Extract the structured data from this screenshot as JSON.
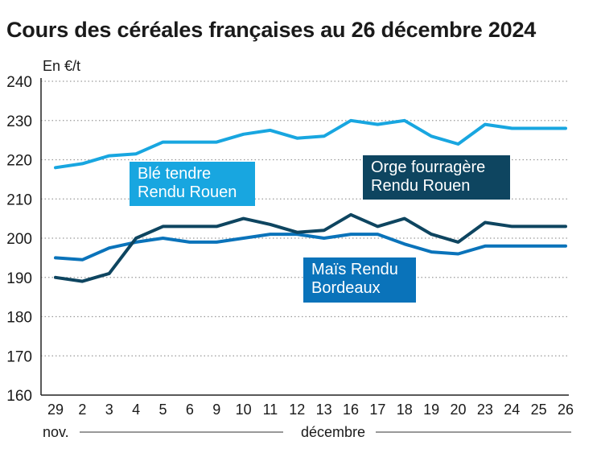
{
  "chart_data": {
    "type": "line",
    "title": "Cours des céréales françaises au 26 décembre 2024",
    "ylabel": "En €/t",
    "ylim": [
      160,
      240
    ],
    "yticks": [
      "160",
      "170",
      "180",
      "190",
      "200",
      "210",
      "220",
      "230",
      "240"
    ],
    "categories": [
      "29",
      "2",
      "3",
      "4",
      "5",
      "6",
      "9",
      "10",
      "11",
      "12",
      "13",
      "16",
      "17",
      "18",
      "19",
      "20",
      "23",
      "24",
      "25",
      "26"
    ],
    "months": [
      {
        "label": "nov.",
        "from_index": 0,
        "to_index": 0
      },
      {
        "label": "décembre",
        "from_index": 1,
        "to_index": 19
      }
    ],
    "series": [
      {
        "name": "Blé tendre Rendu Rouen",
        "label_lines": [
          "Blé tendre",
          "Rendu Rouen"
        ],
        "color": "#18a6e0",
        "values": [
          218,
          219,
          221,
          221.5,
          224.5,
          224.5,
          224.5,
          226.5,
          227.5,
          225.5,
          226,
          230,
          229,
          230,
          226,
          224,
          229,
          228,
          228,
          228
        ]
      },
      {
        "name": "Orge fourragère Rendu Rouen",
        "label_lines": [
          "Orge fourragère",
          "Rendu Rouen"
        ],
        "color": "#0e4560",
        "values": [
          190,
          189,
          191,
          200,
          203,
          203,
          203,
          205,
          203.5,
          201.5,
          202,
          206,
          203,
          205,
          201,
          199,
          204,
          203,
          203,
          203
        ]
      },
      {
        "name": "Maïs Rendu Bordeaux",
        "label_lines": [
          "Maïs Rendu",
          "Bordeaux"
        ],
        "color": "#0a73ba",
        "values": [
          195,
          194.5,
          197.5,
          199,
          200,
          199,
          199,
          200,
          201,
          201,
          200,
          201,
          201,
          198.5,
          196.5,
          196,
          198,
          198,
          198,
          198
        ]
      }
    ]
  }
}
